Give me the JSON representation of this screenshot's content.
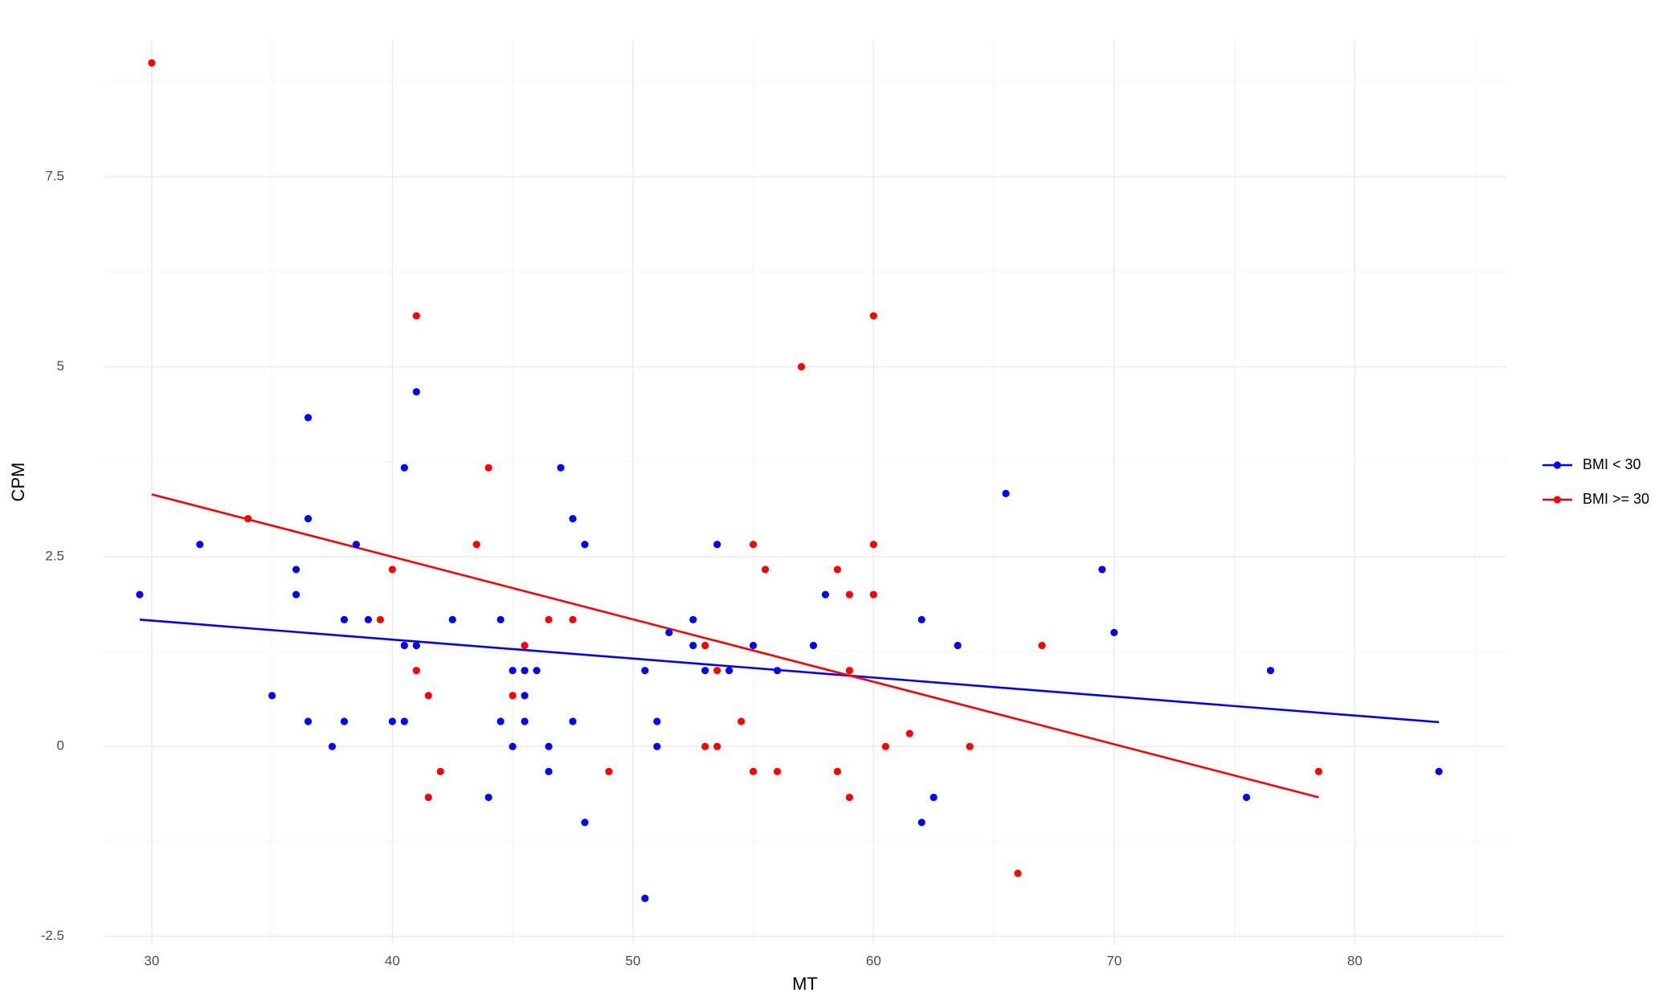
{
  "chart_data": {
    "type": "scatter",
    "x_label": "MT",
    "y_label": "CPM",
    "xlim": [
      28,
      86.3
    ],
    "ylim": [
      -2.6,
      9.3
    ],
    "xticks": [
      30,
      40,
      50,
      60,
      70,
      80
    ],
    "yticks": [
      -2.5,
      0.0,
      2.5,
      5.0,
      7.5
    ],
    "x_minor_ticks": [
      35,
      45,
      55,
      65,
      75,
      85
    ],
    "y_minor_ticks": [
      -1.25,
      1.25,
      3.75,
      6.25,
      8.75
    ],
    "grid": true,
    "legend_position": "right",
    "series": [
      {
        "name": "BMI < 30",
        "color": "#0000ff",
        "x": [
          29.5,
          32.0,
          35.0,
          36.0,
          36.0,
          36.5,
          36.5,
          36.5,
          37.5,
          38.0,
          38.0,
          38.5,
          39.0,
          40.0,
          40.5,
          40.5,
          40.5,
          41.0,
          41.0,
          42.5,
          44.0,
          44.5,
          44.5,
          45.0,
          45.0,
          45.5,
          45.5,
          45.5,
          46.0,
          46.5,
          46.5,
          47.0,
          47.5,
          47.5,
          48.0,
          48.0,
          50.5,
          50.5,
          51.0,
          51.0,
          51.5,
          52.5,
          52.5,
          53.0,
          53.5,
          54.0,
          55.0,
          56.0,
          57.5,
          58.0,
          62.0,
          62.0,
          62.5,
          63.5,
          65.5,
          69.5,
          70.0,
          75.5,
          76.5,
          83.5
        ],
        "values": [
          2.0,
          2.66,
          0.67,
          2.33,
          2.0,
          4.33,
          3.0,
          0.33,
          0,
          1.67,
          0.33,
          2.66,
          1.67,
          0.33,
          3.67,
          1.33,
          0.33,
          4.67,
          1.33,
          1.67,
          -0.67,
          1.67,
          0.33,
          1.0,
          0,
          1.0,
          0.67,
          0.33,
          1.0,
          0,
          -0.33,
          3.67,
          3.0,
          0.33,
          2.66,
          -1.0,
          1.0,
          -2.0,
          0.33,
          0,
          1.5,
          1.67,
          1.33,
          1.0,
          2.66,
          1.0,
          1.33,
          1.0,
          1.33,
          2.0,
          1.67,
          -1.0,
          -0.67,
          1.33,
          3.33,
          2.33,
          1.5,
          -0.67,
          1.0,
          -0.33
        ],
        "trend": {
          "x": [
            29.5,
            83.5
          ],
          "values": [
            1.67,
            0.32
          ]
        }
      },
      {
        "name": "BMI >= 30",
        "color": "#ff0000",
        "x": [
          30.0,
          34.0,
          39.5,
          40.0,
          41.0,
          41.0,
          41.5,
          41.5,
          42.0,
          43.5,
          44.0,
          45.0,
          45.5,
          46.5,
          47.5,
          49.0,
          53.0,
          53.0,
          53.5,
          53.5,
          54.5,
          55.0,
          55.0,
          55.5,
          56.0,
          57.0,
          58.5,
          58.5,
          59.0,
          59.0,
          59.0,
          60.0,
          60.0,
          60.0,
          60.5,
          61.5,
          64.0,
          66.0,
          67.0,
          78.5
        ],
        "values": [
          9.0,
          3.0,
          1.67,
          2.33,
          5.67,
          1.0,
          0.67,
          -0.67,
          -0.33,
          2.66,
          3.67,
          0.67,
          1.33,
          1.67,
          1.67,
          -0.33,
          1.33,
          0,
          1.0,
          0,
          0.33,
          2.66,
          -0.33,
          2.33,
          -0.33,
          5.0,
          2.33,
          -0.33,
          2.0,
          1.0,
          -0.67,
          5.67,
          2.66,
          2.0,
          0,
          0.17,
          0,
          -1.67,
          1.33,
          -0.33
        ],
        "trend": {
          "x": [
            30,
            78.5
          ],
          "values": [
            3.32,
            -0.67
          ]
        }
      }
    ]
  }
}
